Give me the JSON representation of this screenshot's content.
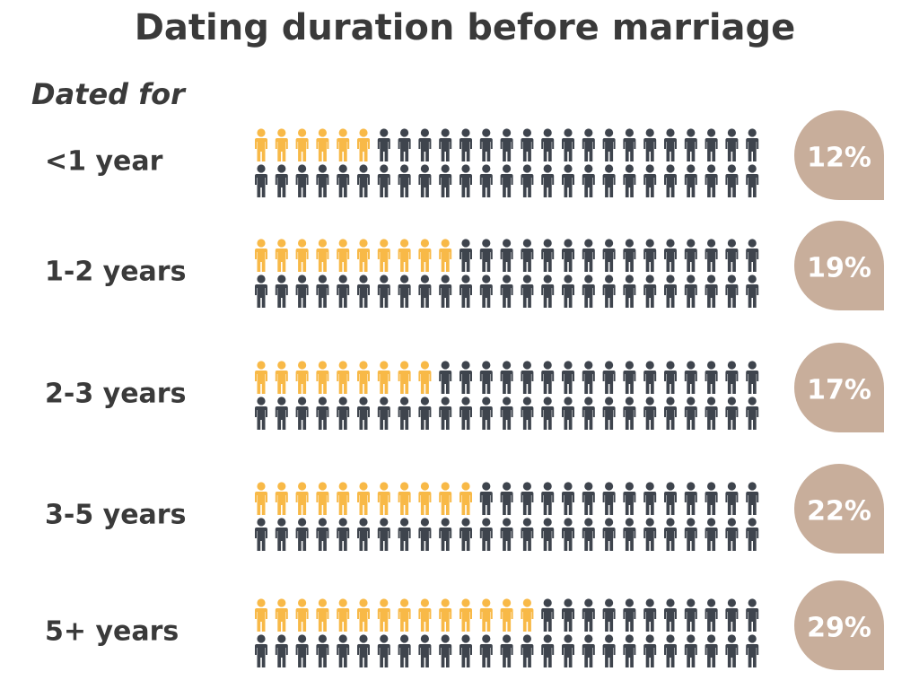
{
  "chart_data": {
    "type": "pictograph",
    "title": "Dating duration before marriage",
    "subtitle": "Dated for",
    "categories": [
      "<1 year",
      "1-2 years",
      "2-3 years",
      "3-5 years",
      "5+ years"
    ],
    "values": [
      12,
      19,
      17,
      22,
      29
    ],
    "value_labels": [
      "12%",
      "19%",
      "17%",
      "22%",
      "29%"
    ],
    "color": "#f8b947",
    "base_color": "#3e444d",
    "badge_color": "#c8ae9b"
  }
}
